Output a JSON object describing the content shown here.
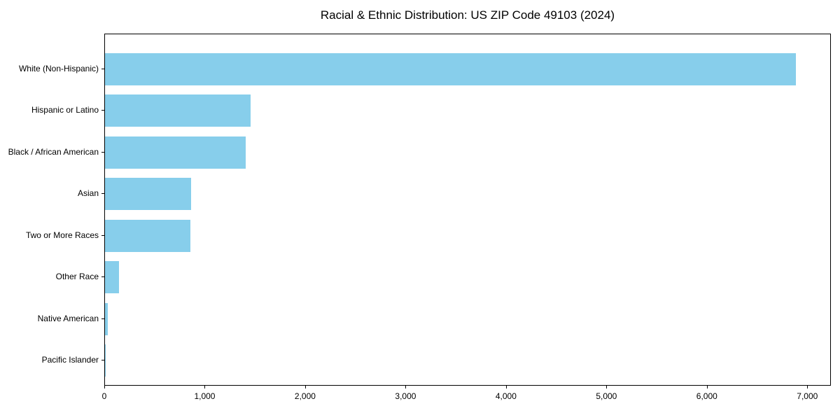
{
  "chart_data": {
    "type": "bar",
    "orientation": "horizontal",
    "title": "Racial & Ethnic Distribution: US ZIP Code 49103 (2024)",
    "categories": [
      "White (Non-Hispanic)",
      "Hispanic or Latino",
      "Black / African American",
      "Asian",
      "Two or More Races",
      "Other Race",
      "Native American",
      "Pacific Islander"
    ],
    "values": [
      6880,
      1450,
      1400,
      860,
      850,
      140,
      25,
      5
    ],
    "xlabel": "",
    "ylabel": "",
    "xlim": [
      0,
      7235
    ],
    "x_ticks": [
      0,
      1000,
      2000,
      3000,
      4000,
      5000,
      6000,
      7000
    ],
    "x_tick_labels": [
      "0",
      "1,000",
      "2,000",
      "3,000",
      "4,000",
      "5,000",
      "6,000",
      "7,000"
    ],
    "bar_color": "#87CEEB",
    "axis_color": "#000000",
    "text_color": "#000000",
    "background_color": "#ffffff",
    "grid": false,
    "legend": null
  }
}
